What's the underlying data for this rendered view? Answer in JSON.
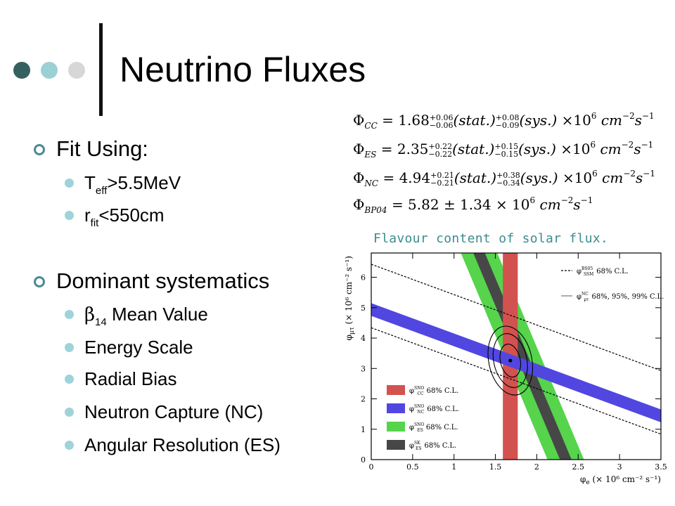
{
  "slide": {
    "title": "Neutrino Fluxes",
    "colors": {
      "dot_dark": "#356060",
      "dot_mid": "#9bd0d4",
      "dot_light": "#d7d7d7",
      "bullet": "#9fd3da",
      "ring": "#4a8a96"
    }
  },
  "content": {
    "section1": {
      "heading": "Fit Using:",
      "items": [
        {
          "base": "T",
          "sub": "eff",
          "rest": ">5.5MeV"
        },
        {
          "base": "r",
          "sub": "fit",
          "rest": "<550cm"
        }
      ]
    },
    "section2": {
      "heading": "Dominant systematics",
      "items": [
        {
          "greek": "β",
          "sub": "14",
          "rest": " Mean Value"
        },
        {
          "text": "Energy Scale"
        },
        {
          "text": "Radial Bias"
        },
        {
          "text": "Neutron Capture (NC)"
        },
        {
          "text": "Angular Resolution (ES)"
        }
      ]
    }
  },
  "equations": [
    {
      "symbol": "Φ",
      "sub": "CC",
      "value": "1.68",
      "stat_up": "+0.06",
      "stat_dn": "−0.06",
      "sys_up": "+0.08",
      "sys_dn": "−0.09",
      "stat": "(stat.)",
      "sys": "(sys.)",
      "times": "×10",
      "exp": "6",
      "units": "cm",
      "cm_exp": "−2",
      "s": "s",
      "s_exp": "−1"
    },
    {
      "symbol": "Φ",
      "sub": "ES",
      "value": "2.35",
      "stat_up": "+0.22",
      "stat_dn": "−0.22",
      "sys_up": "+0.15",
      "sys_dn": "−0.15",
      "stat": "(stat.)",
      "sys": "(sys.)",
      "times": "×10",
      "exp": "6",
      "units": "cm",
      "cm_exp": "−2",
      "s": "s",
      "s_exp": "−1"
    },
    {
      "symbol": "Φ",
      "sub": "NC",
      "value": "4.94",
      "stat_up": "+0.21",
      "stat_dn": "−0.21",
      "sys_up": "+0.38",
      "sys_dn": "−0.34",
      "stat": "(stat.)",
      "sys": "(sys.)",
      "times": "×10",
      "exp": "6",
      "units": "cm",
      "cm_exp": "−2",
      "s": "s",
      "s_exp": "−1"
    }
  ],
  "equation_bp04": {
    "symbol": "Φ",
    "sub": "BP04",
    "text": "= 5.82 ± 1.34 × 10",
    "exp": "6",
    "units": "cm",
    "cm_exp": "−2",
    "s": "s",
    "s_exp": "−1"
  },
  "chart_data": {
    "type": "line",
    "caption": "Flavour content of solar flux.",
    "xlabel_main": "φ",
    "xlabel_sub": "e",
    "xlabel_rest": " (× 10⁶ cm⁻² s⁻¹)",
    "ylabel_main": "φ",
    "ylabel_sub": "μτ",
    "ylabel_rest": " (× 10⁶ cm⁻² s⁻¹)",
    "xlim": [
      0,
      3.5
    ],
    "ylim": [
      0,
      6.8
    ],
    "xticks": [
      0,
      0.5,
      1,
      1.5,
      2,
      2.5,
      3,
      3.5
    ],
    "xtick_labels": [
      "0",
      "0.5",
      "1",
      "1.5",
      "2",
      "2.5",
      "3",
      "3.5"
    ],
    "yticks": [
      0,
      1,
      2,
      3,
      4,
      5,
      6
    ],
    "ytick_labels": [
      "0",
      "1",
      "2",
      "3",
      "4",
      "5",
      "6"
    ],
    "bands": [
      {
        "name": "φ SNO CC",
        "label_main": "φ",
        "label_sup": "SNO",
        "label_sub": "CC",
        "label_tail": "68% C.L.",
        "kind": "vertical",
        "x": [
          1.59,
          1.77
        ],
        "color": "#d2524f"
      },
      {
        "name": "φ SNO NC",
        "label_main": "φ",
        "label_sup": "SNO",
        "label_sub": "NC",
        "label_tail": "68% C.L.",
        "kind": "sum",
        "sum": [
          4.73,
          5.15
        ],
        "color": "#5147e0"
      },
      {
        "name": "φ SNO ES",
        "label_main": "φ",
        "label_sup": "SNO",
        "label_sub": "ES",
        "label_tail": "68% C.L.",
        "kind": "es",
        "es": [
          2.13,
          2.57
        ],
        "color": "#55d44c"
      },
      {
        "name": "φ SK ES",
        "label_main": "φ",
        "label_sup": "SK",
        "label_sub": "ES",
        "label_tail": "68% C.L.",
        "kind": "es",
        "es": [
          2.28,
          2.42
        ],
        "color": "#474747"
      }
    ],
    "dashed_lines": [
      {
        "name": "φ BS05 SSM",
        "label_main": "φ",
        "label_sup": "BS05",
        "label_sub": "SSM",
        "label_tail": "68% C.L.",
        "sum": [
          4.34,
          6.43
        ]
      }
    ],
    "contour_legend": {
      "label_main": "φ",
      "label_sup": "NC",
      "label_sub": "μτ",
      "label_tail": "68%, 95%, 99% C.L."
    },
    "best_fit": {
      "x": 1.68,
      "y": 3.26
    },
    "contours": [
      {
        "cl": "68%",
        "rx": 0.12,
        "ry": 0.55
      },
      {
        "cl": "95%",
        "rx": 0.2,
        "ry": 0.9
      },
      {
        "cl": "99%",
        "rx": 0.26,
        "ry": 1.15
      }
    ]
  }
}
